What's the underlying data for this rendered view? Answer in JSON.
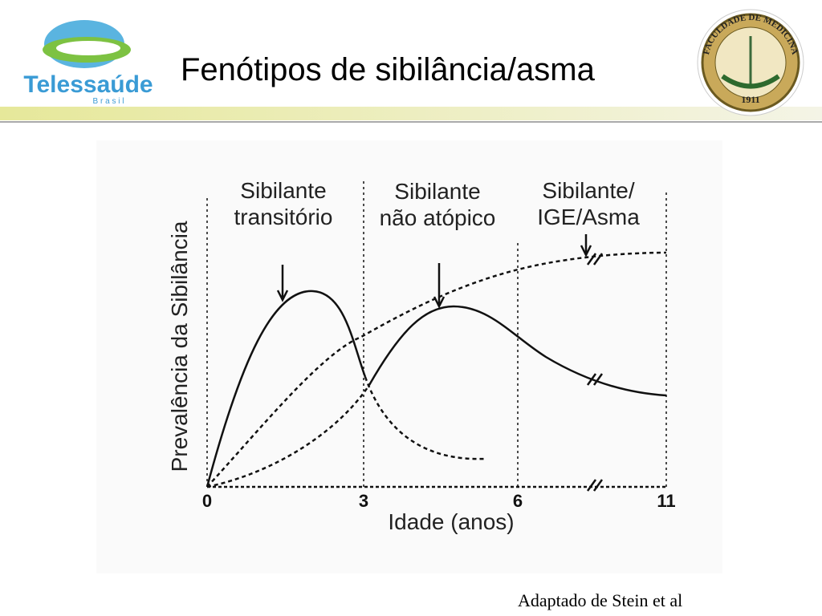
{
  "header": {
    "title": "Fenótipos de sibilância/asma",
    "logo_left": {
      "name": "Telessaúde",
      "subtitle": "B r a s i l"
    },
    "logo_right": {
      "text": "FACULDADE DE MEDICINA",
      "year": "1911"
    }
  },
  "figure": {
    "phase_labels": [
      {
        "line1": "Sibilante",
        "line2": "transitório"
      },
      {
        "line1": "Sibilante",
        "line2": "não atópico"
      },
      {
        "line1": "Sibilante/",
        "line2": "IGE/Asma"
      }
    ],
    "y_axis_label": "Prevalência da Sibilância",
    "x_axis_label": "Idade (anos)",
    "x_ticks": [
      "0",
      "3",
      "6",
      "11"
    ]
  },
  "caption": "Adaptado de Stein et al"
}
